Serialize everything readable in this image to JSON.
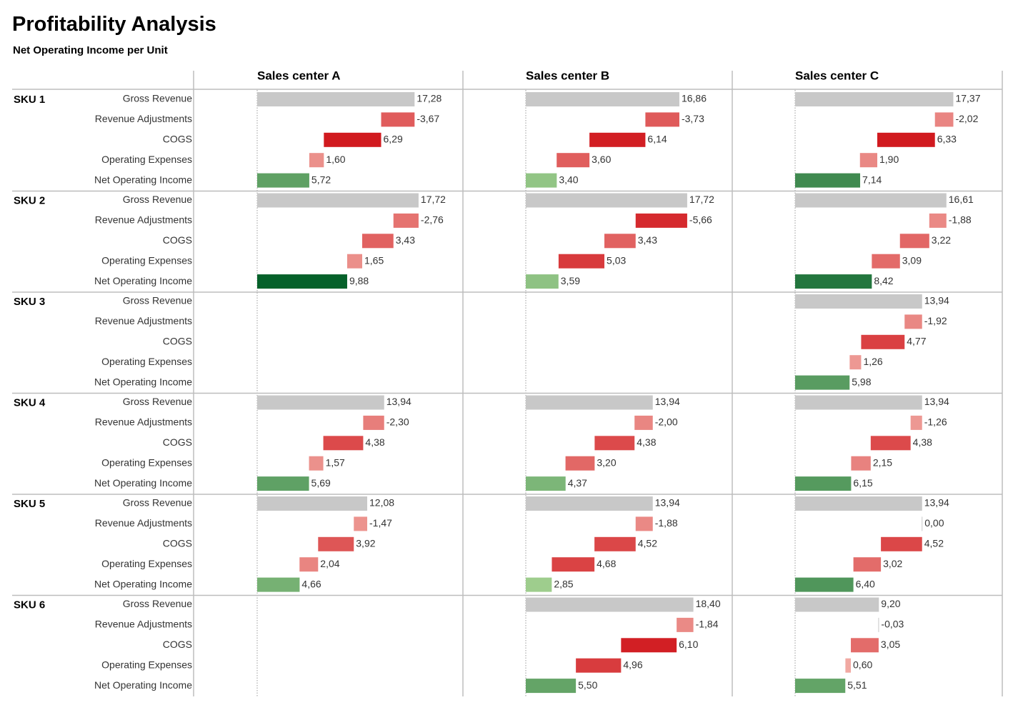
{
  "title": "Profitability Analysis",
  "subtitle": "Net Operating Income per Unit",
  "chart_data": {
    "type": "bar",
    "subtype": "waterfall",
    "centers": [
      "Sales center A",
      "Sales center B",
      "Sales center C"
    ],
    "measures": [
      "Gross Revenue",
      "Revenue Adjustments",
      "COGS",
      "Operating Expenses",
      "Net Operating Income"
    ],
    "skus": [
      {
        "name": "SKU 1",
        "values": [
          [
            "17,28",
            "-3,67",
            "6,29",
            "1,60",
            "5,72"
          ],
          [
            "16,86",
            "-3,73",
            "6,14",
            "3,60",
            "3,40"
          ],
          [
            "17,37",
            "-2,02",
            "6,33",
            "1,90",
            "7,14"
          ]
        ]
      },
      {
        "name": "SKU 2",
        "values": [
          [
            "17,72",
            "-2,76",
            "3,43",
            "1,65",
            "9,88"
          ],
          [
            "17,72",
            "-5,66",
            "3,43",
            "5,03",
            "3,59"
          ],
          [
            "16,61",
            "-1,88",
            "3,22",
            "3,09",
            "8,42"
          ]
        ]
      },
      {
        "name": "SKU 3",
        "values": [
          null,
          null,
          [
            "13,94",
            "-1,92",
            "4,77",
            "1,26",
            "5,98"
          ]
        ]
      },
      {
        "name": "SKU 4",
        "values": [
          [
            "13,94",
            "-2,30",
            "4,38",
            "1,57",
            "5,69"
          ],
          [
            "13,94",
            "-2,00",
            "4,38",
            "3,20",
            "4,37"
          ],
          [
            "13,94",
            "-1,26",
            "4,38",
            "2,15",
            "6,15"
          ]
        ]
      },
      {
        "name": "SKU 5",
        "values": [
          [
            "12,08",
            "-1,47",
            "3,92",
            "2,04",
            "4,66"
          ],
          [
            "13,94",
            "-1,88",
            "4,52",
            "4,68",
            "2,85"
          ],
          [
            "13,94",
            "0,00",
            "4,52",
            "3,02",
            "6,40"
          ]
        ]
      },
      {
        "name": "SKU 6",
        "values": [
          null,
          [
            "18,40",
            "-1,84",
            "6,10",
            "4,96",
            "5,50"
          ],
          [
            "9,20",
            "-0,03",
            "3,05",
            "0,60",
            "5,51"
          ]
        ]
      }
    ],
    "colors": {
      "gross": "#c8c8c8",
      "cost_low": "#f4b8b0",
      "cost_high": "#d11a1f",
      "income_low": "#9fce8e",
      "income_high": "#05612a"
    }
  }
}
